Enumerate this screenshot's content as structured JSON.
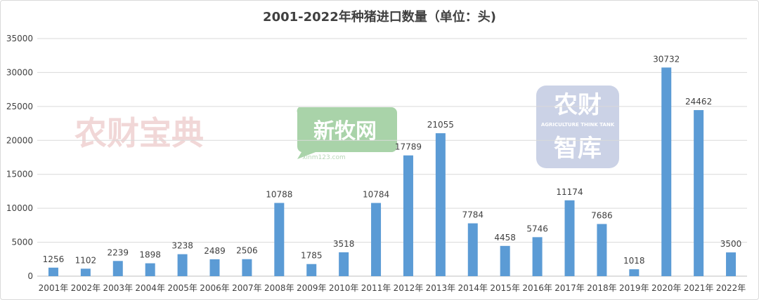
{
  "chart_data": {
    "type": "bar",
    "title": "2001-2022年种猪进口数量（单位：头)",
    "categories": [
      "2001年",
      "2002年",
      "2003年",
      "2004年",
      "2005年",
      "2006年",
      "2007年",
      "2008年",
      "2009年",
      "2010年",
      "2011年",
      "2012年",
      "2013年",
      "2014年",
      "2015年",
      "2016年",
      "2017年",
      "2018年",
      "2019年",
      "2020年",
      "2021年",
      "2022年"
    ],
    "values": [
      1256,
      1102,
      2239,
      1898,
      3238,
      2489,
      2506,
      10788,
      1785,
      3518,
      10784,
      17789,
      21055,
      7784,
      4458,
      5746,
      11174,
      7686,
      1018,
      30732,
      24462,
      3500
    ],
    "ylim": [
      0,
      35000
    ],
    "yticks": [
      0,
      5000,
      10000,
      15000,
      20000,
      25000,
      30000,
      35000
    ],
    "grid": true,
    "bar_color": "#5b9bd5"
  },
  "watermarks": {
    "nongcai_baodian": "农财宝典",
    "xinmuwang": "新牧网",
    "xinmuwang_url": "xinm123.com",
    "zhiku_line1": "农财",
    "zhiku_line2": "智库",
    "zhiku_en": "AGRICULTURE THINK TANK"
  },
  "colors": {
    "watermark_red": "#e6b8b8",
    "watermark_green": "#8cc48c",
    "watermark_blue": "#a9b4d6"
  }
}
